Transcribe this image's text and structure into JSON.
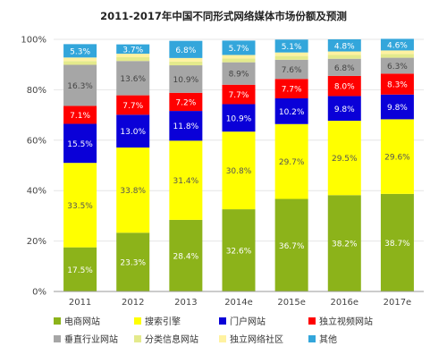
{
  "chart_data": {
    "type": "bar",
    "stacked": true,
    "percent_stacked": true,
    "title": "2011-2017年中国不同形式网络媒体市场份额及预测",
    "categories": [
      "2011",
      "2012",
      "2013",
      "2014e",
      "2015e",
      "2016e",
      "2017e"
    ],
    "ylim": [
      0,
      100
    ],
    "yticks": [
      "0%",
      "20%",
      "40%",
      "60%",
      "80%",
      "100%"
    ],
    "legend_position": "bottom",
    "series": [
      {
        "name": "电商网站",
        "color": "#8cb31a",
        "label_color": "#ffffff",
        "values": [
          17.5,
          23.3,
          28.4,
          32.6,
          36.7,
          38.2,
          38.7
        ]
      },
      {
        "name": "搜索引擎",
        "color": "#ffff00",
        "label_color": "#555555",
        "values": [
          33.5,
          33.8,
          31.4,
          30.8,
          29.7,
          29.5,
          29.6
        ]
      },
      {
        "name": "门户网站",
        "color": "#0a00d8",
        "label_color": "#ffffff",
        "values": [
          15.5,
          13.0,
          11.8,
          10.9,
          10.2,
          9.8,
          9.8
        ]
      },
      {
        "name": "独立视频网站",
        "color": "#ff0000",
        "label_color": "#ffffff",
        "values": [
          7.1,
          7.7,
          7.2,
          7.7,
          7.7,
          8.0,
          8.3
        ]
      },
      {
        "name": "垂直行业网站",
        "color": "#a6a6a6",
        "label_color": "#444444",
        "values": [
          16.3,
          13.6,
          10.9,
          8.9,
          7.6,
          6.8,
          6.3
        ]
      },
      {
        "name": "分类信息网站",
        "color": "#e4ea8c",
        "label_color": "#555555",
        "values": [
          1.5,
          1.5,
          1.5,
          1.5,
          1.5,
          1.5,
          1.5
        ]
      },
      {
        "name": "独立网络社区",
        "color": "#fff2a0",
        "label_color": "#555555",
        "values": [
          1.4,
          1.4,
          1.4,
          1.4,
          1.4,
          1.4,
          1.4
        ]
      },
      {
        "name": "其他",
        "color": "#33a6db",
        "label_color": "#ffffff",
        "values": [
          5.3,
          3.7,
          6.8,
          5.7,
          5.1,
          4.8,
          4.6
        ]
      }
    ],
    "labeled_series": [
      "电商网站",
      "搜索引擎",
      "门户网站",
      "独立视频网站",
      "垂直行业网站",
      "其他"
    ]
  }
}
